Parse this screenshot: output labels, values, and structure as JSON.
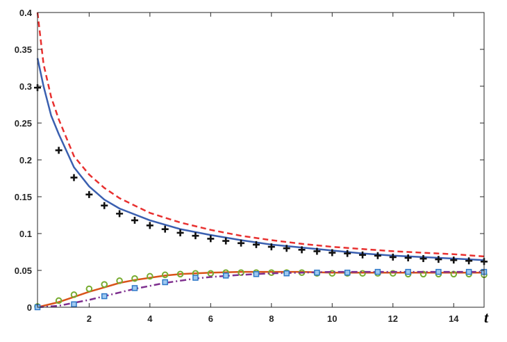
{
  "chart_data": {
    "type": "line",
    "title": "",
    "xlabel": "t",
    "ylabel": "",
    "xlim": [
      0.3,
      15
    ],
    "ylim": [
      0,
      0.4
    ],
    "grid": false,
    "legend": "none",
    "x_ticks": [
      2,
      4,
      6,
      8,
      10,
      12,
      14
    ],
    "x_tick_labels": [
      "2",
      "4",
      "6",
      "8",
      "10",
      "12",
      "14"
    ],
    "y_ticks": [
      0,
      0.05,
      0.1,
      0.15,
      0.2,
      0.25,
      0.3,
      0.35,
      0.4
    ],
    "y_tick_labels": [
      "0",
      "0.05",
      "0.1",
      "0.15",
      "0.2",
      "0.25",
      "0.3",
      "0.35",
      "0.4"
    ],
    "series": [
      {
        "style": "dashed-line",
        "color": "#e8302f",
        "x": [
          0.3,
          0.5,
          0.75,
          1,
          1.5,
          2,
          2.5,
          3,
          4,
          5,
          6,
          7,
          8,
          9,
          10,
          11,
          12,
          13,
          14,
          15
        ],
        "y": [
          0.4,
          0.33,
          0.285,
          0.255,
          0.205,
          0.18,
          0.162,
          0.148,
          0.128,
          0.115,
          0.105,
          0.097,
          0.091,
          0.086,
          0.082,
          0.079,
          0.076,
          0.074,
          0.072,
          0.069
        ]
      },
      {
        "style": "solid-line",
        "color": "#3a5fb0",
        "x": [
          0.3,
          0.5,
          0.75,
          1,
          1.5,
          2,
          2.5,
          3,
          4,
          5,
          6,
          7,
          8,
          9,
          10,
          11,
          12,
          13,
          14,
          15
        ],
        "y": [
          0.338,
          0.3,
          0.26,
          0.235,
          0.19,
          0.164,
          0.146,
          0.134,
          0.118,
          0.106,
          0.098,
          0.091,
          0.085,
          0.081,
          0.077,
          0.073,
          0.07,
          0.068,
          0.066,
          0.064
        ]
      },
      {
        "style": "plus-markers",
        "color": "#111111",
        "x": [
          0.3,
          1,
          1.5,
          2,
          2.5,
          3,
          3.5,
          4,
          4.5,
          5,
          5.5,
          6,
          6.5,
          7,
          7.5,
          8,
          8.5,
          9,
          9.5,
          10,
          10.5,
          11,
          11.5,
          12,
          12.5,
          13,
          13.5,
          14,
          14.5,
          15
        ],
        "y": [
          0.298,
          0.213,
          0.176,
          0.153,
          0.138,
          0.127,
          0.118,
          0.111,
          0.106,
          0.101,
          0.097,
          0.093,
          0.09,
          0.087,
          0.085,
          0.082,
          0.08,
          0.078,
          0.076,
          0.074,
          0.073,
          0.071,
          0.07,
          0.068,
          0.067,
          0.066,
          0.065,
          0.064,
          0.063,
          0.062
        ]
      },
      {
        "style": "solid-line",
        "color": "#d95319",
        "x": [
          0.3,
          0.5,
          1,
          1.5,
          2,
          2.5,
          3,
          3.5,
          4,
          4.5,
          5,
          5.5,
          6,
          7,
          8,
          9,
          10,
          11,
          12,
          13,
          14,
          15
        ],
        "y": [
          0.0,
          0.002,
          0.007,
          0.014,
          0.021,
          0.027,
          0.033,
          0.037,
          0.04,
          0.043,
          0.045,
          0.046,
          0.047,
          0.048,
          0.048,
          0.048,
          0.047,
          0.047,
          0.047,
          0.047,
          0.047,
          0.047
        ]
      },
      {
        "style": "circle-markers",
        "color": "#77ac30",
        "x": [
          0.3,
          1,
          1.5,
          2,
          2.5,
          3,
          3.5,
          4,
          4.5,
          5,
          5.5,
          6,
          6.5,
          7,
          7.5,
          8,
          8.5,
          9,
          9.5,
          10,
          10.5,
          11,
          11.5,
          12,
          12.5,
          13,
          13.5,
          14,
          14.5,
          15
        ],
        "y": [
          0.001,
          0.009,
          0.017,
          0.025,
          0.031,
          0.036,
          0.039,
          0.042,
          0.044,
          0.045,
          0.046,
          0.046,
          0.047,
          0.047,
          0.047,
          0.047,
          0.047,
          0.047,
          0.046,
          0.046,
          0.046,
          0.046,
          0.046,
          0.046,
          0.045,
          0.045,
          0.045,
          0.045,
          0.045,
          0.044
        ]
      },
      {
        "style": "dashdot-line",
        "color": "#7e2f8e",
        "x": [
          0.3,
          1,
          1.5,
          2,
          2.5,
          3,
          3.5,
          4,
          4.5,
          5,
          5.5,
          6,
          7,
          8,
          9,
          10,
          11,
          12,
          13,
          14,
          15
        ],
        "y": [
          0.0,
          0.002,
          0.006,
          0.01,
          0.015,
          0.02,
          0.025,
          0.029,
          0.033,
          0.036,
          0.039,
          0.041,
          0.044,
          0.046,
          0.047,
          0.048,
          0.048,
          0.048,
          0.048,
          0.048,
          0.048
        ]
      },
      {
        "style": "square-markers",
        "color": "#2e78c8",
        "fill": "#9ec9f0",
        "x": [
          0.3,
          1.5,
          2.5,
          3.5,
          4.5,
          5.5,
          6.5,
          7.5,
          8.5,
          9.5,
          10.5,
          11.5,
          12.5,
          13.5,
          14.5,
          15
        ],
        "y": [
          0.0,
          0.004,
          0.015,
          0.026,
          0.034,
          0.04,
          0.043,
          0.045,
          0.046,
          0.047,
          0.047,
          0.048,
          0.048,
          0.048,
          0.048,
          0.048
        ]
      }
    ]
  }
}
